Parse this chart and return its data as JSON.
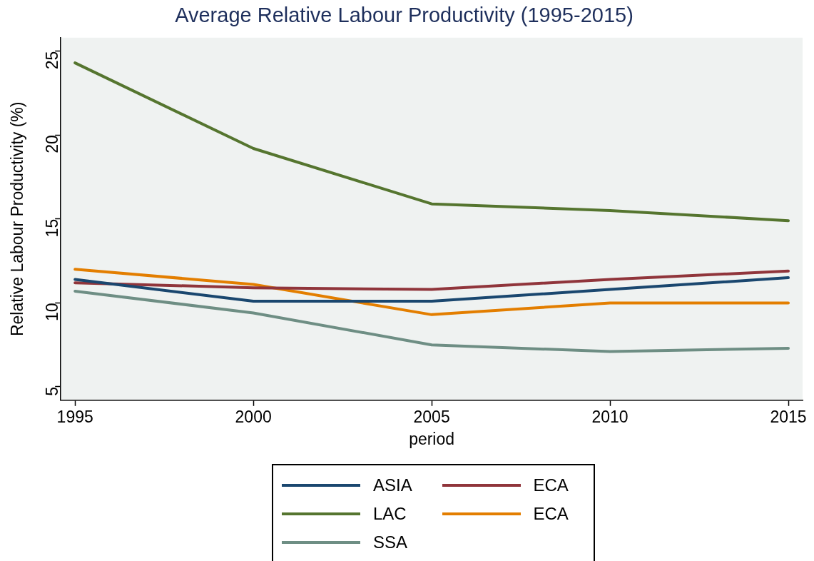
{
  "chart_data": {
    "type": "line",
    "title": "Average Relative Labour Productivity (1995-2015)",
    "xlabel": "period",
    "ylabel": "Relative Labour Productivity (%)",
    "x": [
      1995,
      2000,
      2005,
      2010,
      2015
    ],
    "series": [
      {
        "name": "ASIA",
        "color": "#1a476f",
        "values": [
          11.4,
          10.1,
          10.1,
          10.8,
          11.5
        ]
      },
      {
        "name": "ECA",
        "color": "#90353b",
        "values": [
          11.2,
          10.9,
          10.8,
          11.4,
          11.9
        ]
      },
      {
        "name": "LAC",
        "color": "#55752f",
        "values": [
          24.3,
          19.2,
          15.9,
          15.5,
          14.9
        ]
      },
      {
        "name": "ECA",
        "color": "#e37e00",
        "values": [
          12.0,
          11.1,
          9.3,
          10.0,
          10.0
        ]
      },
      {
        "name": "SSA",
        "color": "#6e8e84",
        "values": [
          10.7,
          9.4,
          7.5,
          7.1,
          7.3
        ]
      }
    ],
    "xlim": [
      1994.6,
      2015.4
    ],
    "xticks": [
      1995,
      2000,
      2005,
      2010,
      2015
    ],
    "ylim": [
      4.2,
      25.8
    ],
    "yticks": [
      5,
      10,
      15,
      20,
      25
    ],
    "grid": false,
    "legend": "bottom",
    "marker": "none",
    "line_style": "solid"
  }
}
